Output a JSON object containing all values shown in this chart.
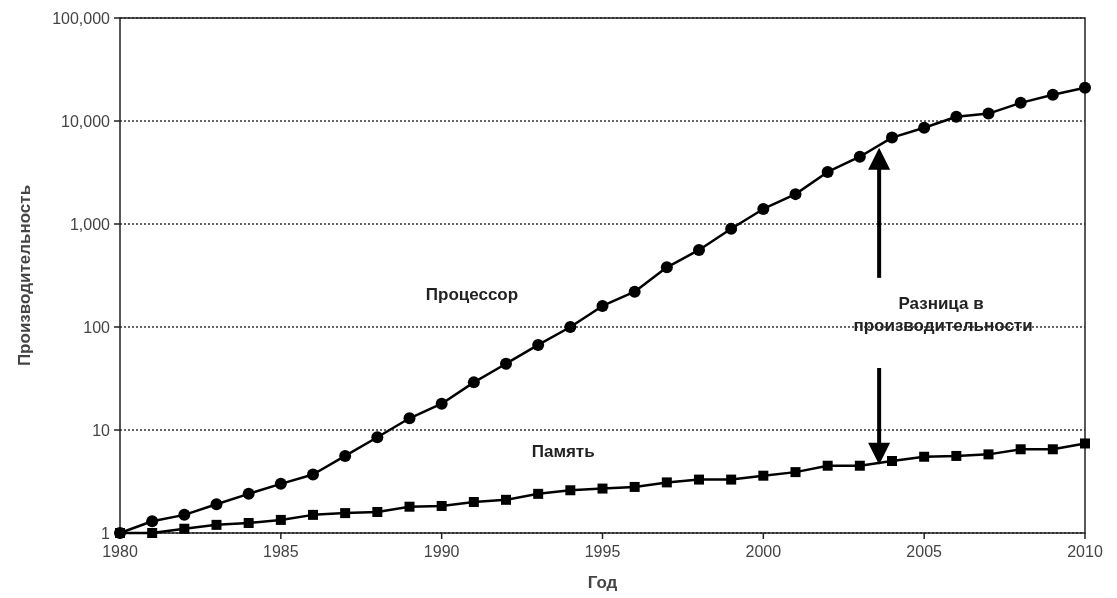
{
  "chart_data": {
    "type": "line",
    "xlabel": "Год",
    "ylabel": "Производительность",
    "log": "y",
    "grid": "y",
    "line_style": "solid",
    "x": [
      1980,
      1981,
      1982,
      1983,
      1984,
      1985,
      1986,
      1987,
      1988,
      1989,
      1990,
      1991,
      1992,
      1993,
      1994,
      1995,
      1996,
      1997,
      1998,
      1999,
      2000,
      2001,
      2002,
      2003,
      2004,
      2005,
      2006,
      2007,
      2008,
      2009,
      2010
    ],
    "xlim": [
      1980,
      2010
    ],
    "xticks": [
      1980,
      1985,
      1990,
      1995,
      2000,
      2005,
      2010
    ],
    "ylim": [
      1,
      100000
    ],
    "yticks": [
      1,
      10,
      100,
      {
        "value": 1000,
        "label": "1,000"
      },
      {
        "value": 10000,
        "label": "10,000"
      },
      {
        "value": 100000,
        "label": "100,000"
      }
    ],
    "series": [
      {
        "name": "Процессор",
        "color": "#000000",
        "marker": "circle",
        "values": [
          1,
          1.3,
          1.5,
          1.9,
          2.4,
          3,
          3.7,
          5.6,
          8.5,
          13,
          18,
          29,
          44,
          67,
          100,
          160,
          220,
          380,
          560,
          900,
          1400,
          1950,
          3200,
          4500,
          6900,
          8600,
          11000,
          11800,
          15000,
          18000,
          21000
        ]
      },
      {
        "name": "Память",
        "color": "#000000",
        "marker": "square",
        "values": [
          1,
          1,
          1.1,
          1.2,
          1.25,
          1.34,
          1.5,
          1.56,
          1.6,
          1.8,
          1.83,
          2,
          2.1,
          2.4,
          2.6,
          2.7,
          2.8,
          3.1,
          3.3,
          3.3,
          3.6,
          3.9,
          4.5,
          4.5,
          5,
          5.5,
          5.6,
          5.8,
          6.5,
          6.5,
          7.4
        ]
      }
    ],
    "annotations": [
      "Разница в производительности"
    ]
  }
}
